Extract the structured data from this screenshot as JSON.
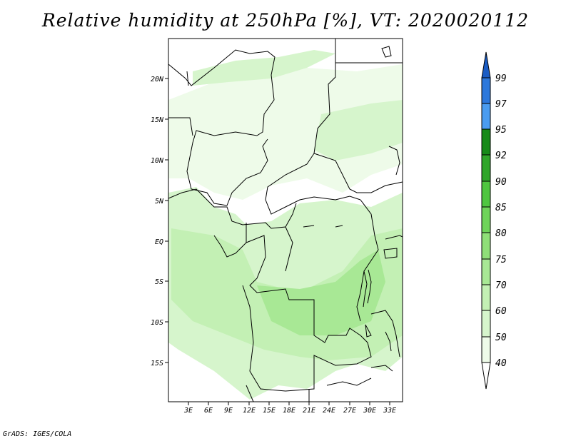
{
  "title": "Relative humidity at 250hPa [%], VT: 2020020112",
  "credit": "GrADS: IGES/COLA",
  "map": {
    "lat_labels": [
      "20N",
      "15N",
      "10N",
      "5N",
      "EQ",
      "5S",
      "10S",
      "15S"
    ],
    "lon_labels": [
      "3E",
      "6E",
      "9E",
      "12E",
      "15E",
      "18E",
      "21E",
      "24E",
      "27E",
      "30E",
      "33E"
    ]
  },
  "colorbar": {
    "labels": [
      "40",
      "50",
      "60",
      "70",
      "75",
      "80",
      "85",
      "90",
      "92",
      "95",
      "97",
      "99"
    ],
    "colors": {
      "c40": "#eefbe9",
      "c50": "#d6f5cc",
      "c60": "#c3f0b4",
      "c70": "#a8e895",
      "c75": "#8fdf78",
      "c80": "#6fd45a",
      "c85": "#4fc640",
      "c90": "#2fa62a",
      "c92": "#168a18",
      "c95": "#4a9cf0",
      "c97": "#2c78dc",
      "c99": "#1a5cc4"
    }
  }
}
